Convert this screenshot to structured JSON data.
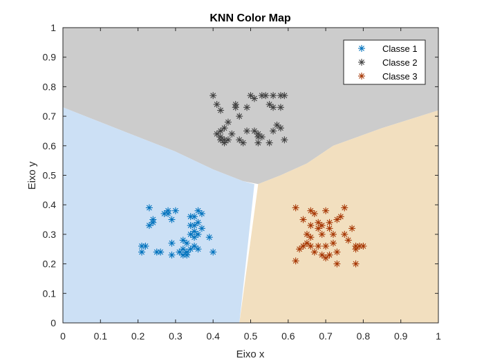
{
  "chart_data": {
    "type": "scatter",
    "title": "KNN Color Map",
    "xlabel": "Eixo x",
    "ylabel": "Eixo y",
    "xlim": [
      0,
      1
    ],
    "ylim": [
      0,
      1
    ],
    "xticks": [
      "0",
      "0.1",
      "0.2",
      "0.3",
      "0.4",
      "0.5",
      "0.6",
      "0.7",
      "0.8",
      "0.9",
      "1"
    ],
    "yticks": [
      "0",
      "0.1",
      "0.2",
      "0.3",
      "0.4",
      "0.5",
      "0.6",
      "0.7",
      "0.8",
      "0.9",
      "1"
    ],
    "grid": false,
    "legend_position": "top-right",
    "marker": "asterisk",
    "regions": [
      {
        "class": "Classe 1",
        "color": "#cce0f5"
      },
      {
        "class": "Classe 2",
        "color": "#cccccc"
      },
      {
        "class": "Classe 3",
        "color": "#f2dfbf"
      }
    ],
    "series": [
      {
        "name": "Classe 1",
        "color": "#0072bd",
        "points": [
          [
            0.23,
            0.39
          ],
          [
            0.21,
            0.26
          ],
          [
            0.21,
            0.24
          ],
          [
            0.22,
            0.26
          ],
          [
            0.23,
            0.33
          ],
          [
            0.24,
            0.34
          ],
          [
            0.24,
            0.35
          ],
          [
            0.25,
            0.24
          ],
          [
            0.26,
            0.24
          ],
          [
            0.27,
            0.37
          ],
          [
            0.28,
            0.37
          ],
          [
            0.28,
            0.38
          ],
          [
            0.29,
            0.35
          ],
          [
            0.29,
            0.27
          ],
          [
            0.29,
            0.23
          ],
          [
            0.3,
            0.38
          ],
          [
            0.31,
            0.24
          ],
          [
            0.32,
            0.23
          ],
          [
            0.32,
            0.25
          ],
          [
            0.32,
            0.28
          ],
          [
            0.33,
            0.24
          ],
          [
            0.33,
            0.27
          ],
          [
            0.33,
            0.23
          ],
          [
            0.34,
            0.25
          ],
          [
            0.34,
            0.3
          ],
          [
            0.34,
            0.36
          ],
          [
            0.35,
            0.31
          ],
          [
            0.35,
            0.26
          ],
          [
            0.35,
            0.36
          ],
          [
            0.35,
            0.29
          ],
          [
            0.36,
            0.38
          ],
          [
            0.36,
            0.34
          ],
          [
            0.36,
            0.3
          ],
          [
            0.37,
            0.32
          ],
          [
            0.37,
            0.37
          ],
          [
            0.34,
            0.33
          ],
          [
            0.39,
            0.29
          ],
          [
            0.4,
            0.24
          ],
          [
            0.35,
            0.33
          ],
          [
            0.36,
            0.25
          ]
        ]
      },
      {
        "name": "Classe 2",
        "color": "#404040",
        "points": [
          [
            0.4,
            0.77
          ],
          [
            0.41,
            0.74
          ],
          [
            0.42,
            0.72
          ],
          [
            0.41,
            0.64
          ],
          [
            0.42,
            0.63
          ],
          [
            0.42,
            0.65
          ],
          [
            0.43,
            0.62
          ],
          [
            0.43,
            0.61
          ],
          [
            0.44,
            0.62
          ],
          [
            0.44,
            0.68
          ],
          [
            0.45,
            0.64
          ],
          [
            0.46,
            0.74
          ],
          [
            0.46,
            0.73
          ],
          [
            0.47,
            0.7
          ],
          [
            0.47,
            0.62
          ],
          [
            0.48,
            0.61
          ],
          [
            0.49,
            0.65
          ],
          [
            0.5,
            0.77
          ],
          [
            0.51,
            0.76
          ],
          [
            0.51,
            0.65
          ],
          [
            0.52,
            0.61
          ],
          [
            0.52,
            0.64
          ],
          [
            0.53,
            0.77
          ],
          [
            0.53,
            0.63
          ],
          [
            0.54,
            0.77
          ],
          [
            0.55,
            0.74
          ],
          [
            0.56,
            0.73
          ],
          [
            0.56,
            0.65
          ],
          [
            0.56,
            0.77
          ],
          [
            0.57,
            0.67
          ],
          [
            0.58,
            0.66
          ],
          [
            0.58,
            0.77
          ],
          [
            0.59,
            0.77
          ],
          [
            0.59,
            0.62
          ],
          [
            0.58,
            0.73
          ],
          [
            0.55,
            0.61
          ],
          [
            0.43,
            0.66
          ],
          [
            0.42,
            0.62
          ],
          [
            0.49,
            0.73
          ],
          [
            0.52,
            0.63
          ]
        ]
      },
      {
        "name": "Classe 3",
        "color": "#a63603",
        "points": [
          [
            0.62,
            0.39
          ],
          [
            0.63,
            0.25
          ],
          [
            0.62,
            0.21
          ],
          [
            0.64,
            0.35
          ],
          [
            0.64,
            0.26
          ],
          [
            0.65,
            0.27
          ],
          [
            0.65,
            0.3
          ],
          [
            0.66,
            0.38
          ],
          [
            0.66,
            0.33
          ],
          [
            0.66,
            0.29
          ],
          [
            0.67,
            0.24
          ],
          [
            0.67,
            0.37
          ],
          [
            0.68,
            0.32
          ],
          [
            0.68,
            0.26
          ],
          [
            0.68,
            0.34
          ],
          [
            0.69,
            0.3
          ],
          [
            0.69,
            0.23
          ],
          [
            0.7,
            0.38
          ],
          [
            0.7,
            0.22
          ],
          [
            0.7,
            0.26
          ],
          [
            0.71,
            0.23
          ],
          [
            0.71,
            0.32
          ],
          [
            0.72,
            0.3
          ],
          [
            0.72,
            0.27
          ],
          [
            0.73,
            0.35
          ],
          [
            0.73,
            0.24
          ],
          [
            0.73,
            0.2
          ],
          [
            0.74,
            0.36
          ],
          [
            0.75,
            0.39
          ],
          [
            0.75,
            0.3
          ],
          [
            0.76,
            0.28
          ],
          [
            0.77,
            0.32
          ],
          [
            0.78,
            0.25
          ],
          [
            0.78,
            0.26
          ],
          [
            0.79,
            0.26
          ],
          [
            0.78,
            0.2
          ],
          [
            0.8,
            0.26
          ],
          [
            0.69,
            0.33
          ],
          [
            0.66,
            0.26
          ],
          [
            0.71,
            0.34
          ]
        ]
      }
    ]
  }
}
